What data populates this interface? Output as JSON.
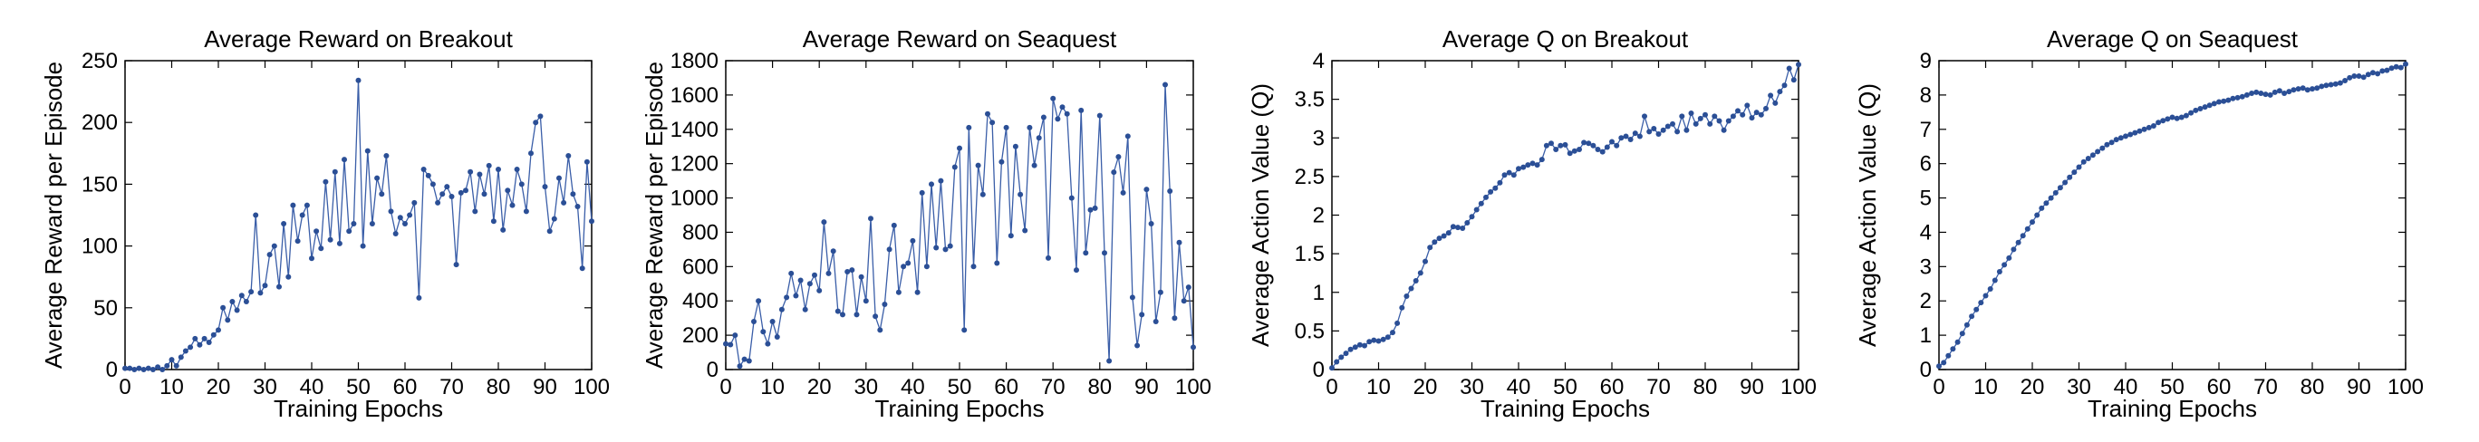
{
  "chart_data": [
    {
      "type": "line",
      "title": "Average Reward on Breakout",
      "xlabel": "Training Epochs",
      "ylabel": "Average Reward per Episode",
      "xlim": [
        0,
        100
      ],
      "ylim": [
        0,
        250
      ],
      "xticks": [
        0,
        10,
        20,
        30,
        40,
        50,
        60,
        70,
        80,
        90,
        100
      ],
      "yticks": [
        0,
        50,
        100,
        150,
        200,
        250
      ],
      "grid": false,
      "series": [
        {
          "color": "#3a5ea8",
          "values": [
            1,
            1,
            0,
            1,
            0,
            1,
            0,
            2,
            0,
            3,
            8,
            3,
            10,
            15,
            18,
            25,
            20,
            25,
            22,
            28,
            32,
            50,
            40,
            55,
            48,
            60,
            55,
            63,
            125,
            62,
            68,
            93,
            100,
            67,
            118,
            75,
            133,
            104,
            125,
            133,
            90,
            112,
            98,
            152,
            105,
            160,
            102,
            170,
            112,
            118,
            234,
            100,
            177,
            118,
            155,
            142,
            173,
            128,
            110,
            123,
            118,
            125,
            135,
            58,
            162,
            157,
            150,
            135,
            142,
            148,
            140,
            85,
            143,
            145,
            160,
            128,
            158,
            142,
            165,
            120,
            162,
            113,
            145,
            133,
            162,
            150,
            128,
            175,
            200,
            205,
            148,
            112,
            122,
            155,
            135,
            173,
            142,
            132,
            82,
            168,
            120
          ]
        }
      ]
    },
    {
      "type": "line",
      "title": "Average Reward on Seaquest",
      "xlabel": "Training Epochs",
      "ylabel": "Average Reward per Episode",
      "xlim": [
        0,
        100
      ],
      "ylim": [
        0,
        1800
      ],
      "xticks": [
        0,
        10,
        20,
        30,
        40,
        50,
        60,
        70,
        80,
        90,
        100
      ],
      "yticks": [
        0,
        200,
        400,
        600,
        800,
        1000,
        1200,
        1400,
        1600,
        1800
      ],
      "grid": false,
      "series": [
        {
          "color": "#3a5ea8",
          "values": [
            150,
            145,
            200,
            20,
            60,
            50,
            280,
            400,
            220,
            150,
            280,
            190,
            350,
            420,
            560,
            430,
            520,
            350,
            500,
            550,
            460,
            860,
            560,
            690,
            340,
            320,
            570,
            580,
            320,
            540,
            400,
            880,
            310,
            230,
            380,
            700,
            840,
            450,
            600,
            620,
            750,
            450,
            1030,
            600,
            1080,
            710,
            1100,
            700,
            720,
            1180,
            1290,
            230,
            1410,
            600,
            1190,
            1020,
            1490,
            1440,
            620,
            1210,
            1410,
            780,
            1300,
            1020,
            810,
            1410,
            1190,
            1350,
            1470,
            650,
            1580,
            1460,
            1530,
            1490,
            1000,
            580,
            1510,
            680,
            930,
            940,
            1480,
            680,
            50,
            1150,
            1240,
            1030,
            1360,
            420,
            140,
            320,
            1050,
            850,
            280,
            450,
            1660,
            1040,
            300,
            740,
            400,
            480,
            130
          ]
        }
      ]
    },
    {
      "type": "line",
      "title": "Average Q on Breakout",
      "xlabel": "Training Epochs",
      "ylabel": "Average Action Value (Q)",
      "xlim": [
        0,
        100
      ],
      "ylim": [
        0,
        4
      ],
      "xticks": [
        0,
        10,
        20,
        30,
        40,
        50,
        60,
        70,
        80,
        90,
        100
      ],
      "yticks": [
        0,
        0.5,
        1,
        1.5,
        2,
        2.5,
        3,
        3.5,
        4
      ],
      "grid": false,
      "series": [
        {
          "color": "#3a5ea8",
          "values": [
            0.02,
            0.1,
            0.16,
            0.21,
            0.26,
            0.29,
            0.32,
            0.31,
            0.36,
            0.38,
            0.37,
            0.39,
            0.42,
            0.48,
            0.6,
            0.8,
            0.95,
            1.05,
            1.15,
            1.25,
            1.4,
            1.58,
            1.65,
            1.7,
            1.73,
            1.77,
            1.85,
            1.84,
            1.83,
            1.9,
            1.98,
            2.07,
            2.15,
            2.23,
            2.3,
            2.35,
            2.42,
            2.52,
            2.55,
            2.52,
            2.6,
            2.62,
            2.65,
            2.67,
            2.65,
            2.72,
            2.9,
            2.93,
            2.85,
            2.9,
            2.91,
            2.8,
            2.83,
            2.85,
            2.94,
            2.93,
            2.9,
            2.85,
            2.82,
            2.88,
            2.95,
            2.9,
            3.0,
            3.02,
            2.98,
            3.06,
            3.02,
            3.28,
            3.08,
            3.12,
            3.05,
            3.1,
            3.15,
            3.18,
            3.08,
            3.28,
            3.1,
            3.32,
            3.18,
            3.25,
            3.3,
            3.18,
            3.28,
            3.22,
            3.1,
            3.22,
            3.28,
            3.35,
            3.3,
            3.42,
            3.26,
            3.33,
            3.3,
            3.38,
            3.55,
            3.45,
            3.6,
            3.68,
            3.9,
            3.75,
            3.95
          ]
        }
      ]
    },
    {
      "type": "line",
      "title": "Average Q on Seaquest",
      "xlabel": "Training Epochs",
      "ylabel": "Average Action Value (Q)",
      "xlim": [
        0,
        100
      ],
      "ylim": [
        0,
        9
      ],
      "xticks": [
        0,
        10,
        20,
        30,
        40,
        50,
        60,
        70,
        80,
        90,
        100
      ],
      "yticks": [
        0,
        1,
        2,
        3,
        4,
        5,
        6,
        7,
        8,
        9
      ],
      "grid": false,
      "series": [
        {
          "color": "#3a5ea8",
          "values": [
            0.1,
            0.2,
            0.4,
            0.6,
            0.8,
            1.05,
            1.3,
            1.55,
            1.75,
            1.95,
            2.15,
            2.35,
            2.6,
            2.85,
            3.05,
            3.25,
            3.5,
            3.7,
            3.9,
            4.1,
            4.3,
            4.5,
            4.7,
            4.85,
            5.0,
            5.15,
            5.3,
            5.45,
            5.6,
            5.75,
            5.9,
            6.05,
            6.15,
            6.25,
            6.35,
            6.45,
            6.55,
            6.62,
            6.7,
            6.75,
            6.8,
            6.85,
            6.9,
            6.95,
            7.0,
            7.05,
            7.1,
            7.2,
            7.25,
            7.3,
            7.35,
            7.32,
            7.35,
            7.4,
            7.48,
            7.55,
            7.6,
            7.65,
            7.7,
            7.75,
            7.8,
            7.82,
            7.85,
            7.9,
            7.92,
            7.95,
            8.0,
            8.05,
            8.08,
            8.05,
            8.02,
            8.0,
            8.08,
            8.12,
            8.05,
            8.1,
            8.15,
            8.18,
            8.2,
            8.15,
            8.18,
            8.2,
            8.25,
            8.28,
            8.3,
            8.32,
            8.35,
            8.42,
            8.5,
            8.55,
            8.55,
            8.52,
            8.6,
            8.65,
            8.62,
            8.7,
            8.72,
            8.78,
            8.82,
            8.8,
            8.9
          ]
        }
      ]
    }
  ]
}
